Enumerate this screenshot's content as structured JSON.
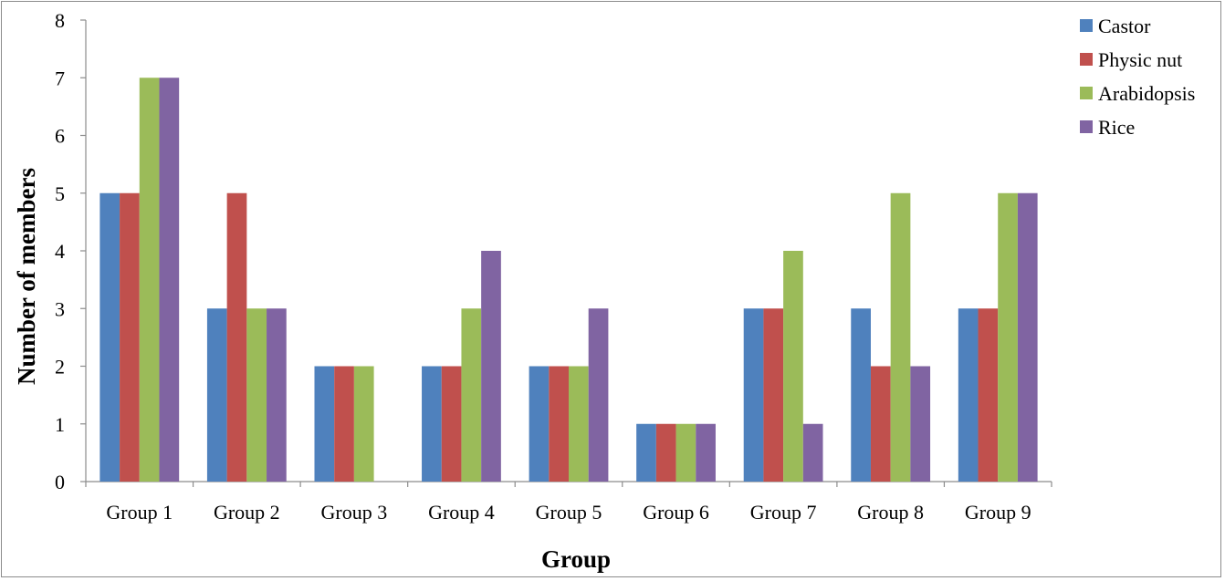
{
  "chart_data": {
    "type": "bar",
    "title": "",
    "xlabel": "Group",
    "ylabel": "Number of members",
    "ylim": [
      0,
      8
    ],
    "yticks": [
      0,
      1,
      2,
      3,
      4,
      5,
      6,
      7,
      8
    ],
    "grid": false,
    "legend_position": "top-right",
    "categories": [
      "Group 1",
      "Group 2",
      "Group 3",
      "Group 4",
      "Group 5",
      "Group 6",
      "Group 7",
      "Group 8",
      "Group 9"
    ],
    "series": [
      {
        "name": "Castor",
        "color": "#4F81BD",
        "values": [
          5,
          3,
          2,
          2,
          2,
          1,
          3,
          3,
          3
        ]
      },
      {
        "name": "Physic nut",
        "color": "#C0504D",
        "values": [
          5,
          5,
          2,
          2,
          2,
          1,
          3,
          2,
          3
        ]
      },
      {
        "name": "Arabidopsis",
        "color": "#9BBB59",
        "values": [
          7,
          3,
          2,
          3,
          2,
          1,
          4,
          5,
          5
        ]
      },
      {
        "name": "Rice",
        "color": "#8064A2",
        "values": [
          7,
          3,
          0,
          4,
          3,
          1,
          1,
          2,
          5
        ]
      }
    ]
  }
}
